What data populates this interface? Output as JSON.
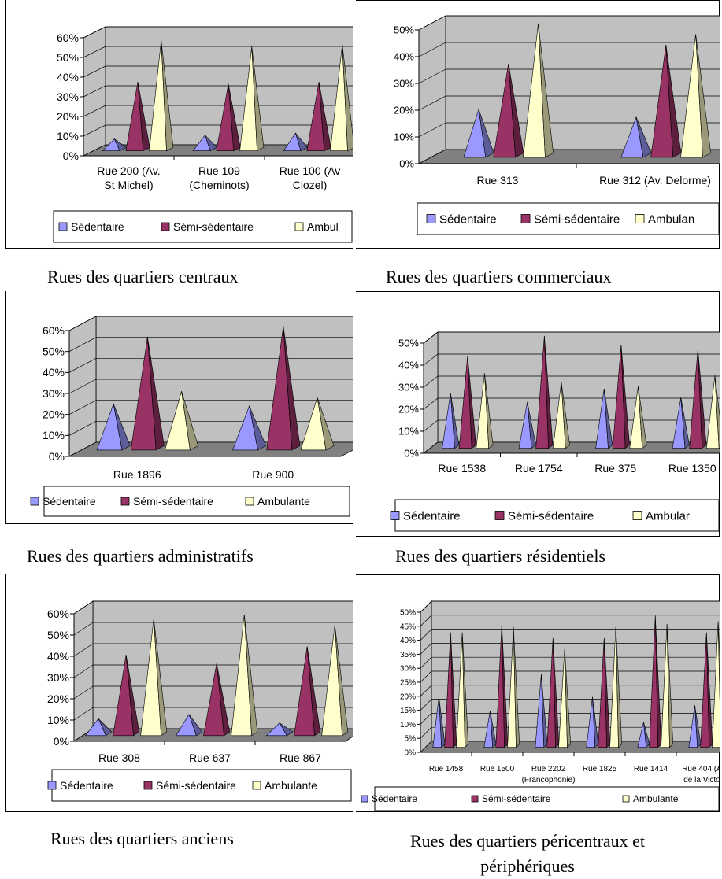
{
  "colors": {
    "sedentaire": "#9999ff",
    "semi": "#993366",
    "ambulante": "#ffffcc",
    "plot_back": "#c0c0c0",
    "floor": "#808080"
  },
  "series_names": [
    "Sédentaire",
    "Sémi-sédentaire",
    "Ambulante"
  ],
  "captions": {
    "centraux": "Rues des quartiers centraux",
    "commerciaux": "Rues des quartiers commerciaux",
    "administratifs": "Rues des quartiers administratifs",
    "residentiels": "Rues des quartiers résidentiels",
    "anciens": "Rues des quartiers anciens",
    "pericentraux": "Rues des quartiers péricentraux et\npériphériques"
  },
  "chart_data": [
    {
      "id": "centraux",
      "type": "bar",
      "style": "3d-pyramid",
      "categories": [
        "Rue 200 (Av.\nSt Michel)",
        "Rue 109\n(Cheminots)",
        "Rue 100 (Av\nClozel)"
      ],
      "series": [
        {
          "name": "Sédentaire",
          "values": [
            0.06,
            0.08,
            0.09
          ]
        },
        {
          "name": "Sémi-sédentaire",
          "values": [
            0.35,
            0.34,
            0.35
          ]
        },
        {
          "name": "Ambulante",
          "values": [
            0.56,
            0.53,
            0.54
          ]
        }
      ],
      "yticks": [
        "0%",
        "10%",
        "20%",
        "30%",
        "40%",
        "50%",
        "60%"
      ],
      "ylim": [
        0,
        0.6
      ],
      "legend": [
        "Sédentaire",
        "Sémi-sédentaire",
        "Ambul"
      ],
      "grid": true,
      "legend_position": "bottom"
    },
    {
      "id": "commerciaux",
      "type": "bar",
      "style": "3d-pyramid",
      "categories": [
        "Rue 313",
        "Rue 312 (Av. Delorme)"
      ],
      "series": [
        {
          "name": "Sédentaire",
          "values": [
            0.18,
            0.15
          ]
        },
        {
          "name": "Sémi-sédentaire",
          "values": [
            0.35,
            0.42
          ]
        },
        {
          "name": "Ambulante",
          "values": [
            0.5,
            0.46
          ]
        }
      ],
      "yticks": [
        "0%",
        "10%",
        "20%",
        "30%",
        "40%",
        "50%"
      ],
      "ylim": [
        0,
        0.5
      ],
      "legend": [
        "Sédentaire",
        "Sémi-sédentaire",
        "Ambulan"
      ],
      "grid": true,
      "legend_position": "bottom"
    },
    {
      "id": "administratifs",
      "type": "bar",
      "style": "3d-pyramid",
      "categories": [
        "Rue 1896",
        "Rue 900"
      ],
      "series": [
        {
          "name": "Sédentaire",
          "values": [
            0.22,
            0.21
          ]
        },
        {
          "name": "Sémi-sédentaire",
          "values": [
            0.54,
            0.59
          ]
        },
        {
          "name": "Ambulante",
          "values": [
            0.28,
            0.25
          ]
        }
      ],
      "yticks": [
        "0%",
        "10%",
        "20%",
        "30%",
        "40%",
        "50%",
        "60%"
      ],
      "ylim": [
        0,
        0.6
      ],
      "legend": [
        "Sédentaire",
        "Sémi-sédentaire",
        "Ambulante"
      ],
      "grid": true,
      "legend_position": "bottom"
    },
    {
      "id": "residentiels",
      "type": "bar",
      "style": "3d-pyramid",
      "categories": [
        "Rue 1538",
        "Rue 1754",
        "Rue 375",
        "Rue 1350"
      ],
      "series": [
        {
          "name": "Sédentaire",
          "values": [
            0.25,
            0.21,
            0.27,
            0.23
          ]
        },
        {
          "name": "Sémi-sédentaire",
          "values": [
            0.42,
            0.51,
            0.47,
            0.45
          ]
        },
        {
          "name": "Ambulante",
          "values": [
            0.34,
            0.3,
            0.28,
            0.33
          ]
        }
      ],
      "yticks": [
        "0%",
        "10%",
        "20%",
        "30%",
        "40%",
        "50%"
      ],
      "ylim": [
        0,
        0.5
      ],
      "legend": [
        "Sédentaire",
        "Sémi-sédentaire",
        "Ambular"
      ],
      "grid": true,
      "legend_position": "bottom"
    },
    {
      "id": "anciens",
      "type": "bar",
      "style": "3d-pyramid",
      "categories": [
        "Rue 308",
        "Rue 637",
        "Rue 867"
      ],
      "series": [
        {
          "name": "Sédentaire",
          "values": [
            0.08,
            0.1,
            0.06
          ]
        },
        {
          "name": "Sémi-sédentaire",
          "values": [
            0.38,
            0.34,
            0.42
          ]
        },
        {
          "name": "Ambulante",
          "values": [
            0.55,
            0.57,
            0.52
          ]
        }
      ],
      "yticks": [
        "0%",
        "10%",
        "20%",
        "30%",
        "40%",
        "50%",
        "60%"
      ],
      "ylim": [
        0,
        0.6
      ],
      "legend": [
        "Sédentaire",
        "Sémi-sédentaire",
        "Ambulante"
      ],
      "grid": true,
      "legend_position": "bottom"
    },
    {
      "id": "pericentraux",
      "type": "bar",
      "style": "3d-pyramid",
      "categories": [
        "Rue 1458",
        "Rue 1500",
        "Rue 2202\n(Francophonie)",
        "Rue 1825",
        "Rue 1414",
        "Rue 404 (A\nde la Victo"
      ],
      "series": [
        {
          "name": "Sédentaire",
          "values": [
            0.18,
            0.13,
            0.26,
            0.18,
            0.09,
            0.15
          ]
        },
        {
          "name": "Sémi-sédentaire",
          "values": [
            0.41,
            0.44,
            0.39,
            0.39,
            0.47,
            0.41
          ]
        },
        {
          "name": "Ambulante",
          "values": [
            0.41,
            0.43,
            0.35,
            0.43,
            0.44,
            0.45
          ]
        }
      ],
      "yticks": [
        "0%",
        "5%",
        "10%",
        "15%",
        "20%",
        "25%",
        "30%",
        "35%",
        "40%",
        "45%",
        "50%"
      ],
      "ylim": [
        0,
        0.5
      ],
      "legend": [
        "Sédentaire",
        "Sémi-sédentaire",
        "Ambulante"
      ],
      "grid": true,
      "legend_position": "bottom"
    }
  ]
}
